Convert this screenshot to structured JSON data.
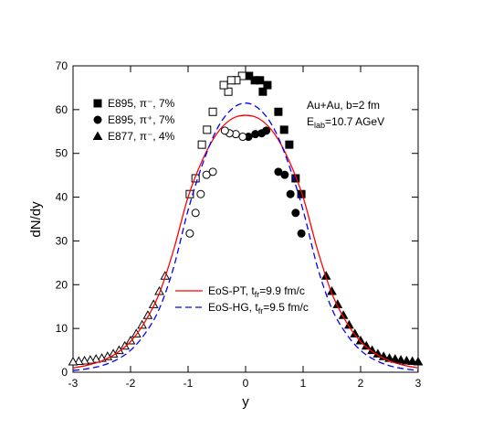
{
  "chart_data": {
    "type": "scatter",
    "xlabel": "y",
    "ylabel": "dN/dy",
    "xlim": [
      -3,
      3
    ],
    "ylim": [
      0,
      70
    ],
    "xticks": [
      -3,
      -2,
      -1,
      0,
      1,
      2,
      3
    ],
    "yticks": [
      0,
      10,
      20,
      30,
      40,
      50,
      60,
      70
    ],
    "annotations": [
      [
        "Au+Au, b=2 fm"
      ],
      [
        "E",
        "lab",
        "=10.7 AGeV"
      ]
    ],
    "series": [
      {
        "name": "E895, π⁻, 7%",
        "marker": "square",
        "color": "#000000",
        "x": [
          0.06,
          0.16,
          0.25,
          0.3,
          0.38,
          0.57,
          0.67,
          0.76,
          0.87,
          0.97
        ],
        "values": [
          67.7,
          66.7,
          66.7,
          64.1,
          65.6,
          59.5,
          55.4,
          52.0,
          44.3,
          40.7
        ],
        "open_x": [
          -0.06,
          -0.16,
          -0.25,
          -0.3,
          -0.38,
          -0.57,
          -0.67,
          -0.76,
          -0.87,
          -0.97
        ],
        "open_values": [
          67.7,
          66.7,
          66.7,
          64.1,
          65.6,
          59.5,
          55.4,
          52.0,
          44.3,
          40.7
        ]
      },
      {
        "name": "E895, π⁺, 7%",
        "marker": "circle",
        "color": "#000000",
        "x": [
          0.05,
          0.17,
          0.28,
          0.36,
          0.57,
          0.68,
          0.78,
          0.87,
          0.97
        ],
        "values": [
          53.8,
          54.4,
          54.6,
          55.2,
          45.8,
          45.1,
          40.7,
          36.4,
          31.7
        ],
        "open_x": [
          -0.05,
          -0.17,
          -0.28,
          -0.36,
          -0.57,
          -0.68,
          -0.78,
          -0.87,
          -0.97
        ],
        "open_values": [
          53.8,
          54.4,
          54.6,
          55.2,
          45.8,
          45.1,
          40.7,
          36.4,
          31.7
        ]
      },
      {
        "name": "E877, π⁻, 4%",
        "marker": "triangle",
        "color": "#000000",
        "x": [
          1.4,
          1.5,
          1.6,
          1.7,
          1.8,
          1.9,
          2.0,
          2.1,
          2.2,
          2.3,
          2.4,
          2.5,
          2.6,
          2.7,
          2.8,
          2.9,
          3.0
        ],
        "values": [
          22.0,
          18.5,
          15.5,
          13.0,
          10.8,
          8.8,
          7.2,
          6.0,
          5.0,
          4.2,
          3.6,
          3.2,
          3.0,
          2.8,
          2.6,
          2.5,
          2.4
        ],
        "open_x": [
          -1.4,
          -1.5,
          -1.6,
          -1.7,
          -1.8,
          -1.9,
          -2.0,
          -2.1,
          -2.2,
          -2.3,
          -2.4,
          -2.5,
          -2.6,
          -2.7,
          -2.8,
          -2.9,
          -3.0
        ],
        "open_values": [
          22.0,
          18.5,
          15.5,
          13.0,
          10.8,
          8.8,
          7.2,
          6.0,
          5.0,
          4.2,
          3.6,
          3.2,
          3.0,
          2.8,
          2.6,
          2.5,
          2.4
        ]
      }
    ],
    "lines": [
      {
        "name": [
          "EoS-PT, t",
          "fr",
          "=9.9 fm/c"
        ],
        "color": "#ff0000",
        "dash": false,
        "x": [
          -3,
          -2.75,
          -2.5,
          -2.25,
          -2,
          -1.75,
          -1.5,
          -1.25,
          -1,
          -0.75,
          -0.5,
          -0.25,
          0,
          0.25,
          0.5,
          0.75,
          1,
          1.25,
          1.5,
          1.75,
          2,
          2.25,
          2.5,
          2.75,
          3
        ],
        "values": [
          1.0,
          1.6,
          2.6,
          4.3,
          7.0,
          11.5,
          18.0,
          28.0,
          40.0,
          48.5,
          54.5,
          57.8,
          58.7,
          57.8,
          54.5,
          48.5,
          40.0,
          28.0,
          18.0,
          11.5,
          7.0,
          4.3,
          2.6,
          1.6,
          1.0
        ]
      },
      {
        "name": [
          "EoS-HG, t",
          "fr",
          "=9.5 fm/c"
        ],
        "color": "#0000ff",
        "dash": true,
        "x": [
          -3,
          -2.75,
          -2.5,
          -2.25,
          -2,
          -1.75,
          -1.5,
          -1.25,
          -1,
          -0.75,
          -0.5,
          -0.25,
          0,
          0.25,
          0.5,
          0.75,
          1,
          1.25,
          1.5,
          1.75,
          2,
          2.25,
          2.5,
          2.75,
          3
        ],
        "values": [
          0.4,
          0.8,
          1.5,
          2.8,
          5.0,
          8.8,
          14.5,
          24.0,
          37.0,
          47.5,
          55.5,
          60.0,
          61.5,
          60.0,
          55.5,
          47.5,
          37.0,
          24.0,
          14.5,
          8.8,
          5.0,
          2.8,
          1.5,
          0.8,
          0.4
        ]
      }
    ]
  }
}
